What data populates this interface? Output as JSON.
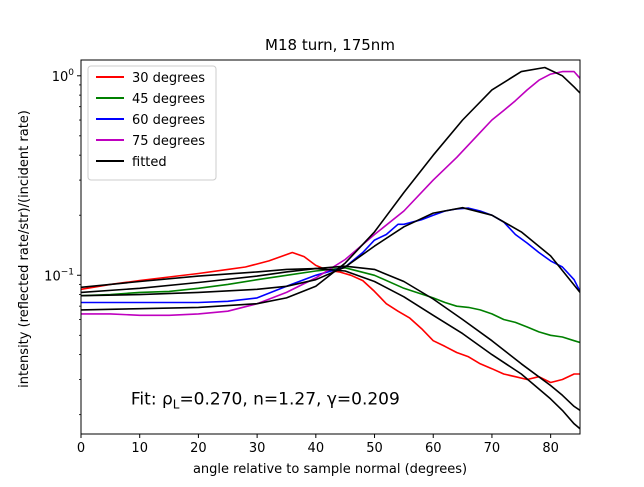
{
  "chart_data": {
    "type": "line",
    "title": "M18 turn, 175nm",
    "xlabel": "angle relative to sample normal (degrees)",
    "ylabel": "intensity (reflected rate/str)/(incident rate)",
    "xlim": [
      0,
      85
    ],
    "ylim": [
      0.016,
      1.2
    ],
    "yscale": "log",
    "grid": false,
    "legend_position": "top-left",
    "x_ticks": [
      0,
      10,
      20,
      30,
      40,
      50,
      60,
      70,
      80
    ],
    "x_tick_labels": [
      "0",
      "10",
      "20",
      "30",
      "40",
      "50",
      "60",
      "70",
      "80"
    ],
    "y_major_ticks": [
      0.1,
      1
    ],
    "y_minor_ticks": [
      0.02,
      0.03,
      0.04,
      0.05,
      0.06,
      0.07,
      0.08,
      0.09,
      0.2,
      0.3,
      0.4,
      0.5,
      0.6,
      0.7,
      0.8,
      0.9
    ],
    "annotation": "Fit: ρL=0.270, n=1.27, γ=0.209",
    "annotation_position": {
      "x": 8.5,
      "y": 0.0225
    },
    "series": [
      {
        "name": "30 degrees",
        "color": "#ff0000",
        "kind": "measured",
        "x": [
          0,
          5,
          10,
          15,
          20,
          25,
          28,
          32,
          36,
          38,
          40,
          42,
          44,
          46,
          48,
          50,
          52,
          54,
          56,
          58,
          60,
          62,
          64,
          66,
          68,
          70,
          72,
          74,
          76,
          78,
          80,
          82,
          84,
          85
        ],
        "y": [
          0.085,
          0.09,
          0.094,
          0.098,
          0.102,
          0.107,
          0.11,
          0.118,
          0.13,
          0.124,
          0.112,
          0.106,
          0.104,
          0.1,
          0.094,
          0.083,
          0.072,
          0.066,
          0.061,
          0.054,
          0.047,
          0.044,
          0.041,
          0.039,
          0.036,
          0.034,
          0.032,
          0.031,
          0.03,
          0.031,
          0.029,
          0.03,
          0.032,
          0.032
        ]
      },
      {
        "name": "45 degrees",
        "color": "#008000",
        "kind": "measured",
        "x": [
          0,
          5,
          10,
          15,
          20,
          25,
          30,
          35,
          40,
          45,
          50,
          55,
          60,
          62,
          64,
          66,
          68,
          70,
          72,
          74,
          76,
          78,
          80,
          82,
          84,
          85
        ],
        "y": [
          0.079,
          0.08,
          0.082,
          0.083,
          0.086,
          0.09,
          0.095,
          0.1,
          0.105,
          0.109,
          0.1,
          0.086,
          0.077,
          0.073,
          0.07,
          0.069,
          0.067,
          0.064,
          0.06,
          0.058,
          0.055,
          0.052,
          0.05,
          0.049,
          0.047,
          0.046
        ]
      },
      {
        "name": "60 degrees",
        "color": "#0000ff",
        "kind": "measured",
        "x": [
          0,
          5,
          10,
          15,
          20,
          25,
          30,
          35,
          40,
          45,
          48,
          50,
          52,
          54,
          55,
          58,
          60,
          62,
          64,
          66,
          68,
          70,
          72,
          74,
          76,
          78,
          80,
          82,
          84,
          85
        ],
        "y": [
          0.073,
          0.073,
          0.073,
          0.073,
          0.073,
          0.074,
          0.077,
          0.088,
          0.1,
          0.11,
          0.13,
          0.15,
          0.16,
          0.18,
          0.18,
          0.19,
          0.2,
          0.21,
          0.215,
          0.217,
          0.21,
          0.2,
          0.185,
          0.16,
          0.145,
          0.13,
          0.118,
          0.11,
          0.095,
          0.083
        ]
      },
      {
        "name": "75 degrees",
        "color": "#bf00bf",
        "kind": "measured",
        "x": [
          0,
          5,
          10,
          15,
          20,
          25,
          30,
          35,
          40,
          45,
          50,
          55,
          60,
          64,
          68,
          70,
          72,
          74,
          76,
          78,
          80,
          82,
          84,
          85
        ],
        "y": [
          0.064,
          0.064,
          0.063,
          0.063,
          0.064,
          0.066,
          0.072,
          0.082,
          0.097,
          0.12,
          0.16,
          0.21,
          0.3,
          0.39,
          0.52,
          0.6,
          0.67,
          0.75,
          0.85,
          0.95,
          1.02,
          1.05,
          1.05,
          0.97
        ]
      },
      {
        "name": "fitted",
        "color": "#000000",
        "kind": "fit",
        "x": [
          0,
          10,
          20,
          30,
          35,
          40,
          45,
          50,
          55,
          60,
          65,
          70,
          75,
          80,
          82,
          84,
          85
        ],
        "y": [
          0.087,
          0.093,
          0.099,
          0.104,
          0.107,
          0.108,
          0.105,
          0.093,
          0.078,
          0.063,
          0.051,
          0.04,
          0.032,
          0.024,
          0.021,
          0.018,
          0.017
        ]
      },
      {
        "name": "",
        "color": "#000000",
        "kind": "fit",
        "x": [
          0,
          10,
          20,
          30,
          35,
          40,
          45,
          50,
          55,
          60,
          65,
          70,
          75,
          80,
          82,
          84,
          85
        ],
        "y": [
          0.082,
          0.086,
          0.092,
          0.099,
          0.104,
          0.108,
          0.111,
          0.107,
          0.093,
          0.076,
          0.06,
          0.047,
          0.036,
          0.028,
          0.025,
          0.022,
          0.021
        ]
      },
      {
        "name": "",
        "color": "#000000",
        "kind": "fit",
        "x": [
          0,
          10,
          20,
          30,
          35,
          40,
          45,
          50,
          55,
          60,
          65,
          70,
          75,
          80,
          85
        ],
        "y": [
          0.079,
          0.08,
          0.082,
          0.085,
          0.088,
          0.095,
          0.11,
          0.14,
          0.175,
          0.205,
          0.218,
          0.2,
          0.165,
          0.125,
          0.082
        ]
      },
      {
        "name": "",
        "color": "#000000",
        "kind": "fit",
        "x": [
          0,
          10,
          20,
          30,
          35,
          40,
          45,
          50,
          55,
          60,
          65,
          70,
          75,
          79,
          82,
          84,
          85
        ],
        "y": [
          0.067,
          0.068,
          0.069,
          0.072,
          0.077,
          0.088,
          0.115,
          0.165,
          0.26,
          0.4,
          0.6,
          0.85,
          1.05,
          1.1,
          1.0,
          0.88,
          0.82
        ]
      }
    ]
  }
}
